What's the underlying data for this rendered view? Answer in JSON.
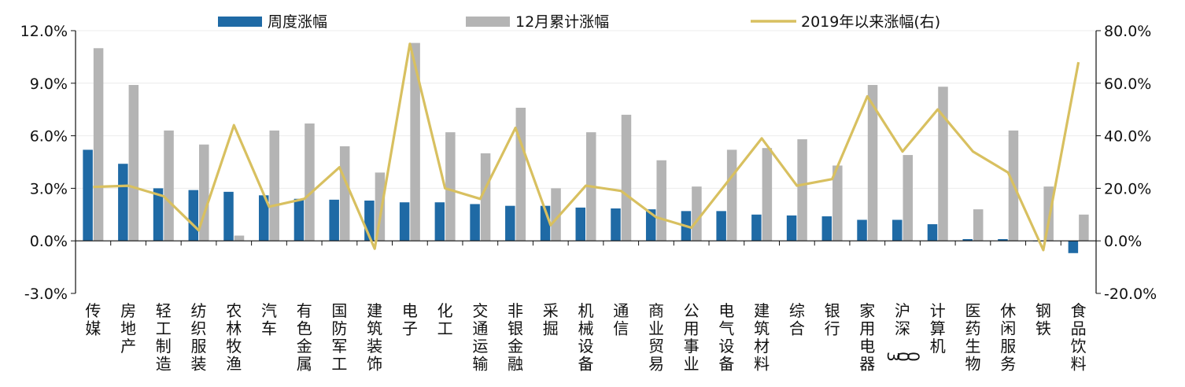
{
  "chart_data": {
    "type": "bar",
    "categories": [
      "传媒",
      "房地产",
      "轻工制造",
      "纺织服装",
      "农林牧渔",
      "汽车",
      "有色金属",
      "国防军工",
      "建筑装饰",
      "电子",
      "化工",
      "交通运输",
      "非银金融",
      "采掘",
      "机械设备",
      "通信",
      "商业贸易",
      "公用事业",
      "电气设备",
      "建筑材料",
      "综合",
      "银行",
      "家用电器",
      "沪深300",
      "计算机",
      "医药生物",
      "休闲服务",
      "钢铁",
      "食品饮料"
    ],
    "series": [
      {
        "name": "周度涨幅",
        "axis": "left",
        "kind": "bar",
        "color": "#1f6aa5",
        "values": [
          5.2,
          4.4,
          3.0,
          2.9,
          2.8,
          2.6,
          2.4,
          2.35,
          2.3,
          2.2,
          2.2,
          2.1,
          2.0,
          2.0,
          1.9,
          1.85,
          1.8,
          1.7,
          1.7,
          1.5,
          1.45,
          1.4,
          1.2,
          1.2,
          0.95,
          0.1,
          0.1,
          0.0,
          -0.7
        ]
      },
      {
        "name": "12月累计涨幅",
        "axis": "left",
        "kind": "bar",
        "color": "#b4b4b4",
        "values": [
          11.0,
          8.9,
          6.3,
          5.5,
          0.3,
          6.3,
          6.7,
          5.4,
          3.9,
          11.3,
          6.2,
          5.0,
          7.6,
          3.0,
          6.2,
          7.2,
          4.6,
          3.1,
          5.2,
          5.3,
          5.8,
          4.3,
          8.9,
          4.9,
          8.8,
          1.8,
          6.3,
          3.1,
          1.5
        ]
      },
      {
        "name": "2019年以来涨幅(右)",
        "axis": "right",
        "kind": "line",
        "color": "#d8c060",
        "values": [
          20.5,
          21.0,
          17.0,
          4.0,
          44.0,
          13.0,
          16.0,
          28.0,
          -3.0,
          75.0,
          20.0,
          16.0,
          43.0,
          6.0,
          21.0,
          19.0,
          9.0,
          5.0,
          22.0,
          39.0,
          21.0,
          23.5,
          55.0,
          34.0,
          50.0,
          34.0,
          26.0,
          -3.5,
          68.0
        ]
      }
    ],
    "left_axis": {
      "min": -3.0,
      "max": 12.0,
      "ticks": [
        "-3.0%",
        "0.0%",
        "3.0%",
        "6.0%",
        "9.0%",
        "12.0%"
      ]
    },
    "right_axis": {
      "min": -20.0,
      "max": 80.0,
      "ticks": [
        "-20.0%",
        "0.0%",
        "20.0%",
        "40.0%",
        "60.0%",
        "80.0%"
      ]
    },
    "legend_position": "top",
    "grid": "horizontal"
  }
}
